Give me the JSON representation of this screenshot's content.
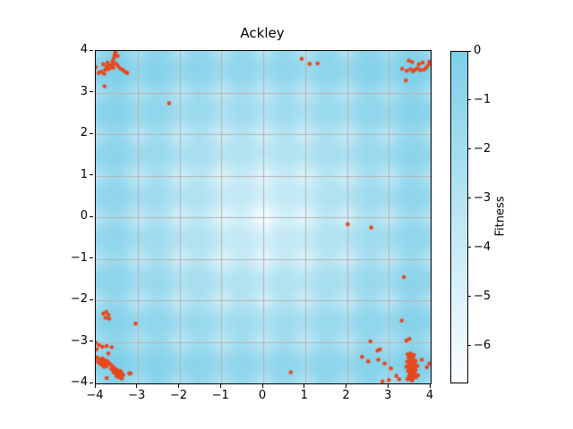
{
  "chart_data": {
    "type": "heatmap",
    "title": "Ackley",
    "colorbar_label": "Fitness",
    "xlabel": "",
    "ylabel": "",
    "xlim": [
      -4,
      4
    ],
    "ylim": [
      -4,
      4
    ],
    "xticks": [
      -4,
      -3,
      -2,
      -1,
      0,
      1,
      2,
      3,
      4
    ],
    "yticks": [
      4,
      3,
      2,
      1,
      0,
      -1,
      -2,
      -3,
      -4
    ],
    "grid": true,
    "grid_values": [
      -3,
      -2,
      -1,
      0,
      1,
      2,
      3
    ],
    "colorbar": {
      "vmax": 0,
      "vmin": -6.73,
      "ticks": [
        0,
        -1,
        -2,
        -3,
        -4,
        -5,
        -6
      ]
    },
    "colors": {
      "heat_high": "#7dcfe9",
      "heat_low": "#fbfeff",
      "scatter": "#e8481c",
      "grid": "#b3b3b3",
      "spine": "#000000"
    },
    "field": {
      "function": "ackley",
      "a": 9,
      "b": 0.2,
      "c": 6.2832,
      "offset": 6.88,
      "resolution": 44
    },
    "scatter": {
      "marker_radius_px": 2.3,
      "points": [
        [
          -4.0,
          3.61
        ],
        [
          -3.93,
          3.47
        ],
        [
          -3.87,
          3.5
        ],
        [
          -3.8,
          3.45
        ],
        [
          -3.78,
          3.55
        ],
        [
          -3.74,
          3.62
        ],
        [
          -3.7,
          3.56
        ],
        [
          -3.68,
          3.66
        ],
        [
          -3.63,
          3.6
        ],
        [
          -3.6,
          3.67
        ],
        [
          -3.6,
          3.75
        ],
        [
          -3.57,
          3.82
        ],
        [
          -3.55,
          3.9
        ],
        [
          -3.53,
          3.97
        ],
        [
          -3.48,
          3.88
        ],
        [
          -3.52,
          3.7
        ],
        [
          -3.47,
          3.64
        ],
        [
          -3.42,
          3.58
        ],
        [
          -3.36,
          3.55
        ],
        [
          -3.3,
          3.5
        ],
        [
          -3.25,
          3.47
        ],
        [
          -3.72,
          3.72
        ],
        [
          -3.82,
          3.68
        ],
        [
          -3.79,
          3.15
        ],
        [
          -3.58,
          3.6
        ],
        [
          0.92,
          3.81
        ],
        [
          1.11,
          3.69
        ],
        [
          1.3,
          3.7
        ],
        [
          3.48,
          3.77
        ],
        [
          3.56,
          3.73
        ],
        [
          3.32,
          3.57
        ],
        [
          3.43,
          3.52
        ],
        [
          3.52,
          3.56
        ],
        [
          3.58,
          3.51
        ],
        [
          3.63,
          3.55
        ],
        [
          3.68,
          3.58
        ],
        [
          3.72,
          3.68
        ],
        [
          3.75,
          3.54
        ],
        [
          3.81,
          3.72
        ],
        [
          3.84,
          3.55
        ],
        [
          3.9,
          3.6
        ],
        [
          3.95,
          3.67
        ],
        [
          3.41,
          3.29
        ],
        [
          3.97,
          3.74
        ],
        [
          -2.25,
          2.74
        ],
        [
          2.02,
          -0.17
        ],
        [
          2.58,
          -0.25
        ],
        [
          3.36,
          -1.44
        ],
        [
          3.31,
          -2.49
        ],
        [
          -3.82,
          -2.32
        ],
        [
          -3.75,
          -2.28
        ],
        [
          -3.7,
          -2.35
        ],
        [
          -3.77,
          -2.42
        ],
        [
          -3.68,
          -2.44
        ],
        [
          -3.05,
          -2.56
        ],
        [
          -4.0,
          -3.02
        ],
        [
          -3.92,
          -3.08
        ],
        [
          -3.84,
          -3.12
        ],
        [
          -3.74,
          -3.1
        ],
        [
          -3.62,
          -3.13
        ],
        [
          -3.98,
          -3.18
        ],
        [
          -3.7,
          -3.28
        ],
        [
          -3.97,
          -3.38
        ],
        [
          -3.92,
          -3.42
        ],
        [
          -3.95,
          -3.48
        ],
        [
          -3.88,
          -3.45
        ],
        [
          -3.9,
          -3.52
        ],
        [
          -3.84,
          -3.4
        ],
        [
          -3.82,
          -3.48
        ],
        [
          -3.78,
          -3.44
        ],
        [
          -3.76,
          -3.52
        ],
        [
          -3.72,
          -3.47
        ],
        [
          -3.85,
          -3.56
        ],
        [
          -3.8,
          -3.6
        ],
        [
          -3.73,
          -3.58
        ],
        [
          -3.67,
          -3.52
        ],
        [
          -3.62,
          -3.57
        ],
        [
          -3.57,
          -3.62
        ],
        [
          -3.63,
          -3.65
        ],
        [
          -3.56,
          -3.7
        ],
        [
          -3.5,
          -3.67
        ],
        [
          -3.47,
          -3.72
        ],
        [
          -3.42,
          -3.7
        ],
        [
          -3.38,
          -3.75
        ],
        [
          -3.45,
          -3.78
        ],
        [
          -3.52,
          -3.76
        ],
        [
          -3.58,
          -3.73
        ],
        [
          -3.44,
          -3.85
        ],
        [
          -3.38,
          -3.88
        ],
        [
          -3.5,
          -3.83
        ],
        [
          -3.35,
          -3.8
        ],
        [
          -3.2,
          -3.76
        ],
        [
          -3.74,
          -3.87
        ],
        [
          -3.17,
          -3.76
        ],
        [
          0.66,
          -3.73
        ],
        [
          2.36,
          -3.36
        ],
        [
          2.51,
          -3.47
        ],
        [
          2.56,
          -2.99
        ],
        [
          2.73,
          -3.21
        ],
        [
          2.79,
          -3.18
        ],
        [
          2.75,
          -3.43
        ],
        [
          2.9,
          -3.52
        ],
        [
          3.05,
          -3.64
        ],
        [
          3.18,
          -3.82
        ],
        [
          2.85,
          -3.95
        ],
        [
          3.0,
          -3.92
        ],
        [
          3.25,
          -3.9
        ],
        [
          3.42,
          -2.97
        ],
        [
          3.49,
          -2.93
        ],
        [
          3.79,
          -3.43
        ],
        [
          3.91,
          -3.61
        ],
        [
          3.97,
          -3.52
        ],
        [
          3.45,
          -3.3
        ],
        [
          3.52,
          -3.28
        ],
        [
          3.48,
          -3.38
        ],
        [
          3.55,
          -3.35
        ],
        [
          3.6,
          -3.32
        ],
        [
          3.58,
          -3.42
        ],
        [
          3.5,
          -3.45
        ],
        [
          3.44,
          -3.48
        ],
        [
          3.52,
          -3.52
        ],
        [
          3.58,
          -3.5
        ],
        [
          3.64,
          -3.46
        ],
        [
          3.62,
          -3.55
        ],
        [
          3.55,
          -3.58
        ],
        [
          3.48,
          -3.56
        ],
        [
          3.42,
          -3.6
        ],
        [
          3.5,
          -3.63
        ],
        [
          3.56,
          -3.65
        ],
        [
          3.62,
          -3.62
        ],
        [
          3.68,
          -3.58
        ],
        [
          3.46,
          -3.7
        ],
        [
          3.52,
          -3.72
        ],
        [
          3.58,
          -3.7
        ],
        [
          3.64,
          -3.68
        ],
        [
          3.5,
          -3.78
        ],
        [
          3.56,
          -3.76
        ],
        [
          3.62,
          -3.76
        ],
        [
          3.48,
          -3.84
        ],
        [
          3.54,
          -3.82
        ],
        [
          3.6,
          -3.82
        ],
        [
          3.52,
          -3.88
        ],
        [
          3.58,
          -3.88
        ],
        [
          3.55,
          -3.93
        ],
        [
          3.45,
          -3.9
        ],
        [
          3.65,
          -3.85
        ],
        [
          3.7,
          -3.8
        ]
      ]
    }
  }
}
